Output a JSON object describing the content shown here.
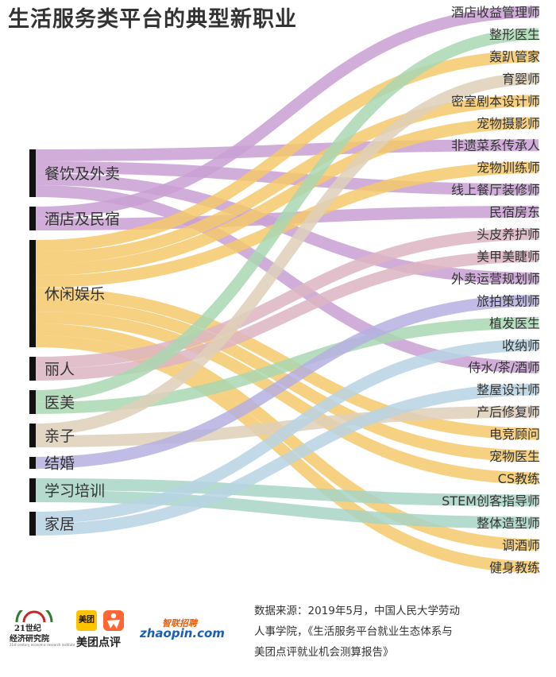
{
  "title": "生活服务类平台的典型新职业",
  "colors": {
    "purple": "#C9A0D2",
    "orange": "#F5C96B",
    "pink": "#DDB5C2",
    "green": "#A9D7B1",
    "beige": "#DED0BA",
    "lavender": "#B5B0E2",
    "teal": "#A7D5C5",
    "blue": "#B7D3E4",
    "bar": "#111111"
  },
  "categories": [
    {
      "label": "餐饮及外卖",
      "color": "purple"
    },
    {
      "label": "酒店及民宿",
      "color": "purple"
    },
    {
      "label": "休闲娱乐",
      "color": "orange"
    },
    {
      "label": "丽人",
      "color": "pink"
    },
    {
      "label": "医美",
      "color": "green"
    },
    {
      "label": "亲子",
      "color": "beige"
    },
    {
      "label": "结婚",
      "color": "lavender"
    },
    {
      "label": "学习培训",
      "color": "teal"
    },
    {
      "label": "家居",
      "color": "blue"
    }
  ],
  "jobs": [
    "酒店收益管理师",
    "整形医生",
    "轰趴管家",
    "育婴师",
    "密室剧本设计师",
    "宠物摄影师",
    "非遗菜系传承人",
    "宠物训练师",
    "线上餐厅装修师",
    "民宿房东",
    "头皮养护师",
    "美甲美睫师",
    "外卖运营规划师",
    "旅拍策划师",
    "植发医生",
    "收纳师",
    "侍水/茶/酒师",
    "整屋设计师",
    "产后修复师",
    "电竞顾问",
    "宠物医生",
    "CS教练",
    "STEM创客指导师",
    "整体造型师",
    "调酒师",
    "健身教练"
  ],
  "links": [
    {
      "from": 1,
      "to": 0,
      "color": "purple"
    },
    {
      "from": 4,
      "to": 1,
      "color": "green"
    },
    {
      "from": 2,
      "to": 2,
      "color": "orange"
    },
    {
      "from": 5,
      "to": 3,
      "color": "beige"
    },
    {
      "from": 2,
      "to": 4,
      "color": "orange"
    },
    {
      "from": 2,
      "to": 5,
      "color": "orange"
    },
    {
      "from": 0,
      "to": 6,
      "color": "purple"
    },
    {
      "from": 2,
      "to": 7,
      "color": "orange"
    },
    {
      "from": 0,
      "to": 8,
      "color": "purple"
    },
    {
      "from": 1,
      "to": 9,
      "color": "purple"
    },
    {
      "from": 3,
      "to": 10,
      "color": "pink"
    },
    {
      "from": 3,
      "to": 11,
      "color": "pink"
    },
    {
      "from": 0,
      "to": 12,
      "color": "purple"
    },
    {
      "from": 6,
      "to": 13,
      "color": "lavender"
    },
    {
      "from": 4,
      "to": 14,
      "color": "green"
    },
    {
      "from": 8,
      "to": 15,
      "color": "blue"
    },
    {
      "from": 0,
      "to": 16,
      "color": "purple"
    },
    {
      "from": 8,
      "to": 17,
      "color": "blue"
    },
    {
      "from": 5,
      "to": 18,
      "color": "beige"
    },
    {
      "from": 2,
      "to": 19,
      "color": "orange"
    },
    {
      "from": 2,
      "to": 20,
      "color": "orange"
    },
    {
      "from": 2,
      "to": 21,
      "color": "orange"
    },
    {
      "from": 7,
      "to": 22,
      "color": "teal"
    },
    {
      "from": 7,
      "to": 23,
      "color": "teal"
    },
    {
      "from": 2,
      "to": 24,
      "color": "orange"
    },
    {
      "from": 2,
      "to": 25,
      "color": "orange"
    }
  ],
  "footer": {
    "source_line1": "数据来源：2019年5月，中国人民大学劳动",
    "source_line2": "人事学院，《生活服务平台就业生态体系与",
    "source_line3": "美团点评就业机会测算报告》"
  },
  "logos": {
    "brand_21_name": "21世纪",
    "brand_21_sub": "经济研究院",
    "brand_21_tiny": "21st century economic research institute",
    "meituan_box": "美团",
    "meituan_name": "美团点评",
    "zhaopin_cn": "智联招聘",
    "zhaopin_en": "zhaopin.com"
  }
}
